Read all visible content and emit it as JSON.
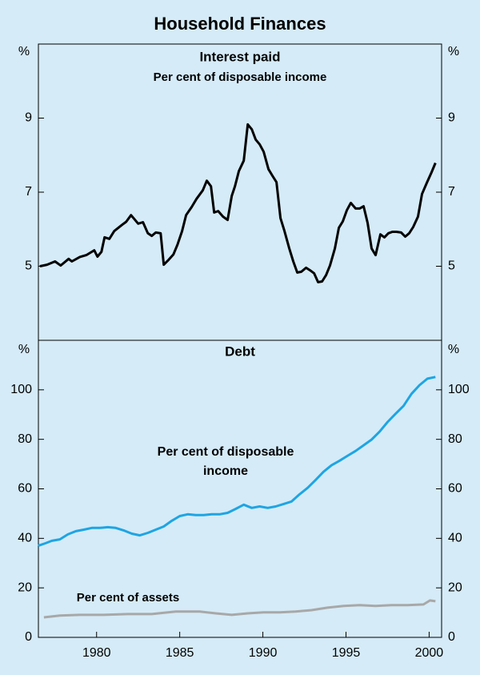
{
  "title": "Household Finances",
  "chart_data": [
    {
      "type": "line",
      "title": "Interest paid",
      "subtitle": "Per cent of disposable income",
      "y_label": "%",
      "xlim": [
        1976.5,
        2000.75
      ],
      "ylim": [
        3,
        11
      ],
      "yticks": [
        5,
        7,
        9
      ],
      "series": [
        {
          "color": "#000000",
          "x": [
            1976.59,
            1977.02,
            1977.5,
            1977.84,
            1978.32,
            1978.51,
            1978.99,
            1979.38,
            1979.86,
            1980.05,
            1980.29,
            1980.48,
            1980.77,
            1981.06,
            1981.54,
            1981.78,
            1982.07,
            1982.5,
            1982.79,
            1983.08,
            1983.32,
            1983.56,
            1983.85,
            1984.04,
            1984.28,
            1984.62,
            1984.86,
            1985.14,
            1985.38,
            1985.72,
            1986.01,
            1986.39,
            1986.63,
            1986.88,
            1987.07,
            1987.31,
            1987.6,
            1987.88,
            1988.13,
            1988.32,
            1988.56,
            1988.85,
            1989.09,
            1989.33,
            1989.57,
            1989.81,
            1990.05,
            1990.34,
            1990.58,
            1990.82,
            1991.06,
            1991.3,
            1991.59,
            1991.83,
            1992.07,
            1992.31,
            1992.6,
            1992.84,
            1993.08,
            1993.32,
            1993.56,
            1993.8,
            1994.04,
            1994.33,
            1994.57,
            1994.81,
            1995.05,
            1995.29,
            1995.58,
            1995.82,
            1996.06,
            1996.3,
            1996.54,
            1996.78,
            1997.07,
            1997.31,
            1997.55,
            1997.79,
            1998.03,
            1998.32,
            1998.56,
            1998.8,
            1999.04,
            1999.33,
            1999.57,
            1999.86,
            2000.14,
            2000.38
          ],
          "values": [
            5.0,
            5.04,
            5.13,
            5.02,
            5.2,
            5.13,
            5.25,
            5.3,
            5.43,
            5.26,
            5.39,
            5.78,
            5.74,
            5.95,
            6.12,
            6.2,
            6.38,
            6.15,
            6.19,
            5.89,
            5.82,
            5.91,
            5.89,
            5.04,
            5.15,
            5.32,
            5.58,
            5.95,
            6.38,
            6.6,
            6.82,
            7.05,
            7.31,
            7.16,
            6.45,
            6.49,
            6.34,
            6.25,
            6.9,
            7.16,
            7.57,
            7.85,
            8.83,
            8.7,
            8.42,
            8.29,
            8.09,
            7.62,
            7.44,
            7.27,
            6.3,
            5.95,
            5.48,
            5.13,
            4.83,
            4.85,
            4.96,
            4.89,
            4.81,
            4.57,
            4.59,
            4.76,
            5.02,
            5.48,
            6.04,
            6.21,
            6.51,
            6.71,
            6.56,
            6.56,
            6.62,
            6.17,
            5.48,
            5.3,
            5.86,
            5.78,
            5.89,
            5.93,
            5.93,
            5.91,
            5.8,
            5.89,
            6.06,
            6.34,
            6.95,
            7.25,
            7.53,
            7.79
          ]
        }
      ]
    },
    {
      "type": "line",
      "title": "Debt",
      "y_label": "%",
      "xlim": [
        1976.5,
        2000.75
      ],
      "ylim": [
        0,
        120
      ],
      "yticks": [
        0,
        20,
        40,
        60,
        80,
        100
      ],
      "xticks": [
        1980,
        1985,
        1990,
        1995,
        2000
      ],
      "series": [
        {
          "name": "Per cent of disposable income",
          "color": "#1ea5e3",
          "x": [
            1976.49,
            1976.92,
            1977.31,
            1977.79,
            1978.27,
            1978.75,
            1979.23,
            1979.71,
            1980.19,
            1980.67,
            1981.15,
            1981.63,
            1982.12,
            1982.6,
            1983.08,
            1983.56,
            1984.04,
            1984.52,
            1985.0,
            1985.48,
            1985.96,
            1986.44,
            1986.92,
            1987.4,
            1987.88,
            1988.37,
            1988.85,
            1989.33,
            1989.81,
            1990.29,
            1990.77,
            1991.25,
            1991.73,
            1992.21,
            1992.69,
            1993.17,
            1993.65,
            1994.13,
            1994.62,
            1995.1,
            1995.58,
            1996.06,
            1996.54,
            1997.02,
            1997.5,
            1997.98,
            1998.46,
            1998.94,
            1999.42,
            1999.9,
            2000.38
          ],
          "values": [
            37,
            38,
            39,
            39.6,
            41.6,
            42.9,
            43.5,
            44.2,
            44.2,
            44.5,
            44.2,
            43.2,
            41.9,
            41.2,
            42.2,
            43.5,
            44.8,
            47.1,
            49,
            49.7,
            49.4,
            49.4,
            49.7,
            49.7,
            50.3,
            51.9,
            53.6,
            52.3,
            52.9,
            52.3,
            52.9,
            53.9,
            54.9,
            57.8,
            60.4,
            63.6,
            66.9,
            69.5,
            71.4,
            73.4,
            75.3,
            77.6,
            79.9,
            83.1,
            87,
            90.3,
            93.5,
            98.4,
            101.9,
            104.5,
            105.2
          ]
        },
        {
          "name": "Per cent of assets",
          "color": "#a8a8a8",
          "x": [
            1976.83,
            1977.79,
            1978.99,
            1980.43,
            1981.88,
            1983.32,
            1984.76,
            1986.2,
            1987.16,
            1988.13,
            1989.09,
            1990.05,
            1991.01,
            1991.97,
            1992.93,
            1993.89,
            1994.86,
            1995.82,
            1996.78,
            1997.74,
            1998.7,
            1999.66,
            2000.05,
            2000.38
          ],
          "values": [
            8.1,
            8.8,
            9.1,
            9.1,
            9.4,
            9.4,
            10.4,
            10.4,
            9.7,
            9.1,
            9.7,
            10.1,
            10.1,
            10.4,
            11,
            12,
            12.7,
            13,
            12.7,
            13,
            13,
            13.3,
            14.9,
            14.6
          ]
        }
      ]
    }
  ]
}
